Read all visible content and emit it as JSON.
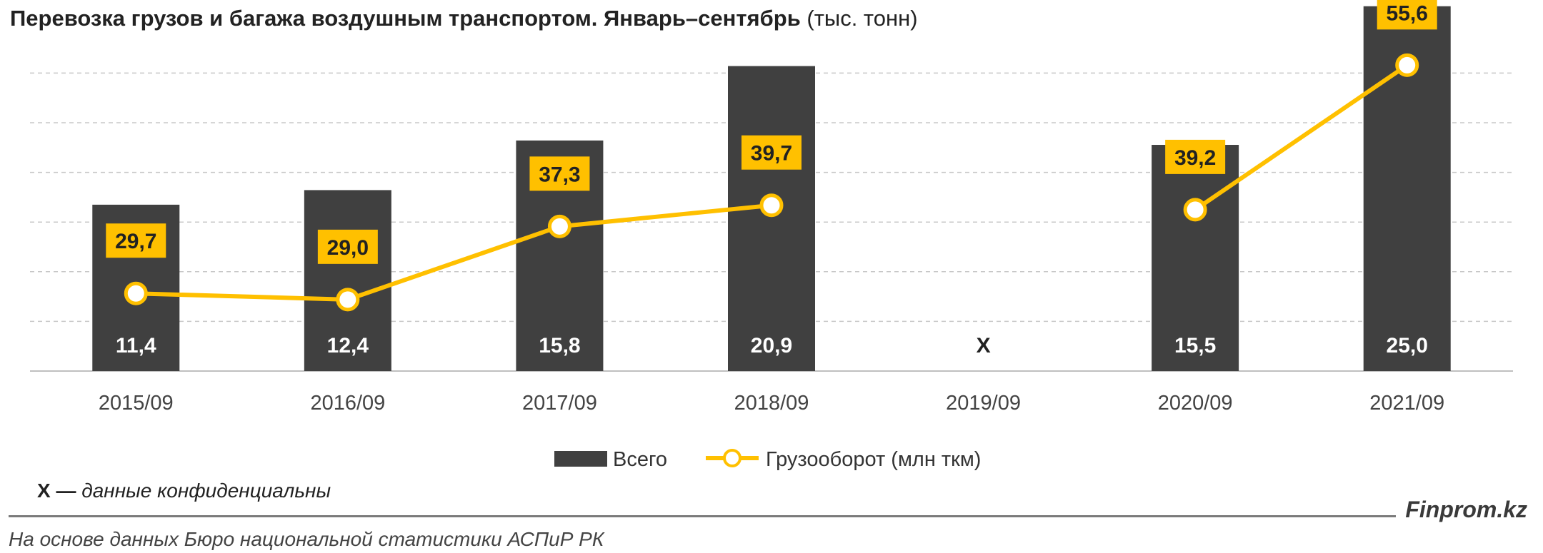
{
  "header": {
    "title_bold": "Перевозка грузов и багажа воздушным транспортом. Январь–сентябрь",
    "title_unit": "(тыс. тонн)"
  },
  "note": {
    "marker": "X —",
    "text": "данные конфиденциальны"
  },
  "brand": "Finprom.kz",
  "source": "На основе данных Бюро национальной статистики АСПиР РК",
  "colors": {
    "bar": "#404040",
    "line": "#FFC000",
    "grid": "#c8c8c8",
    "axis": "#bfbfbf"
  },
  "chart_data": {
    "type": "bar",
    "categories": [
      "2015/09",
      "2016/09",
      "2017/09",
      "2018/09",
      "2019/09",
      "2020/09",
      "2021/09"
    ],
    "series": [
      {
        "name": "Всего",
        "type": "bar",
        "values": [
          11.4,
          12.4,
          15.8,
          20.9,
          null,
          15.5,
          25.0
        ],
        "labels": [
          "11,4",
          "12,4",
          "15,8",
          "20,9",
          "X",
          "15,5",
          "25,0"
        ]
      },
      {
        "name": "Грузооборот (млн ткм)",
        "type": "line",
        "values": [
          29.7,
          29.0,
          37.3,
          39.7,
          null,
          39.2,
          55.6
        ],
        "labels": [
          "29,7",
          "29,0",
          "37,3",
          "39,7",
          "",
          "39,2",
          "55,6"
        ]
      }
    ],
    "legend_position": "bottom",
    "grid": true
  }
}
